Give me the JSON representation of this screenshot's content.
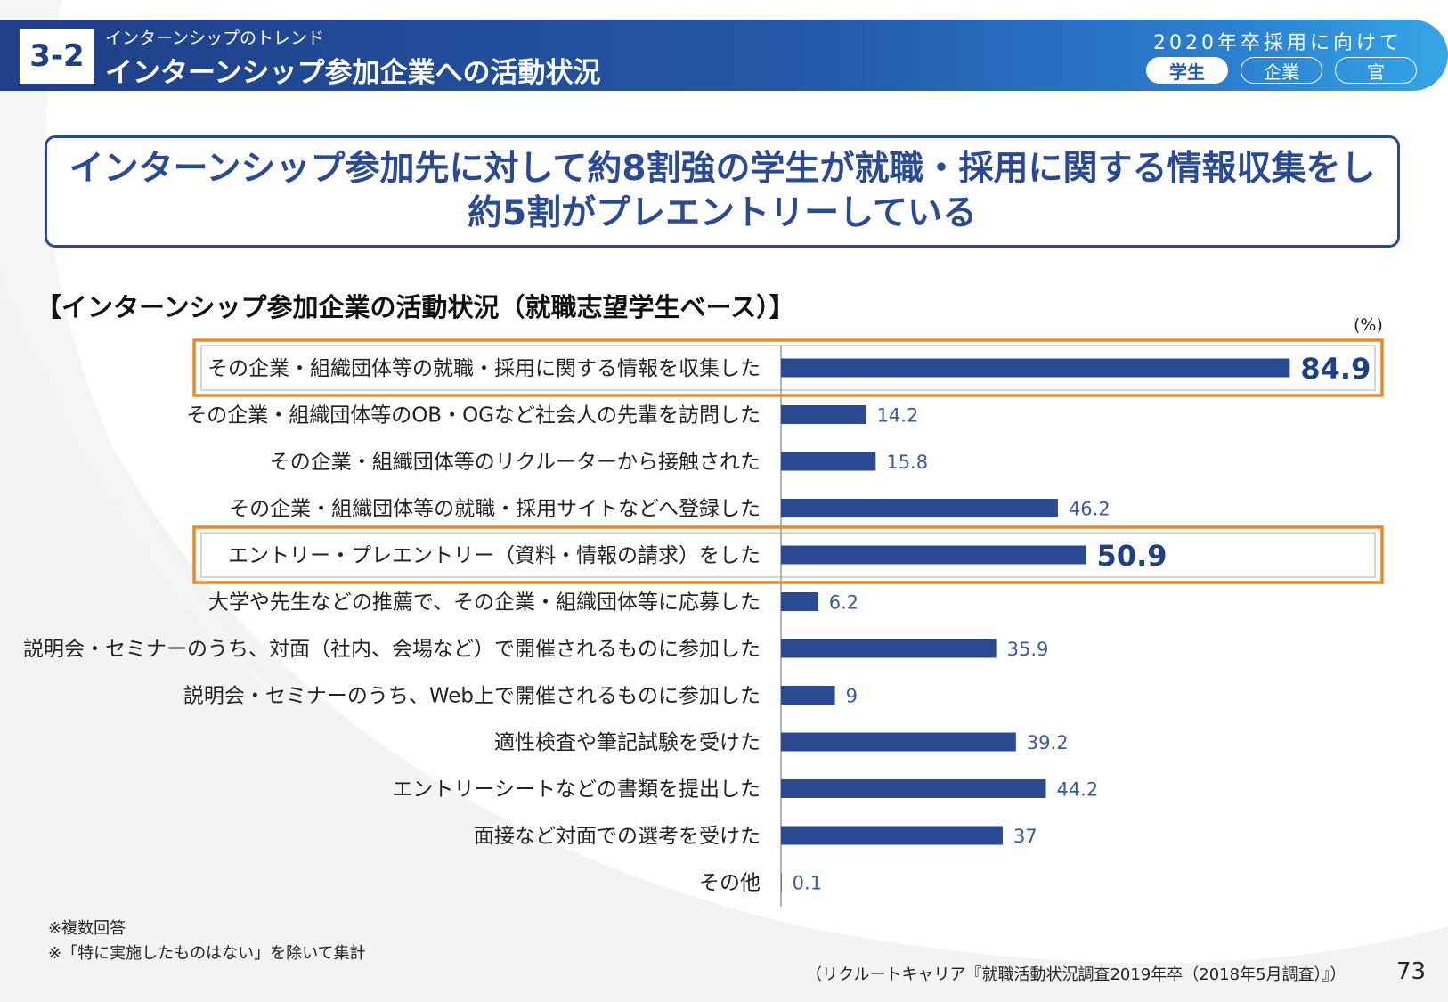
{
  "header": {
    "section_number": "3-2",
    "section_subtitle": "インターンシップのトレンド",
    "section_title": "インターンシップ参加企業への活動状況",
    "year_label": "2020年卒採用に向けて",
    "audience_tabs": [
      {
        "label": "学生",
        "active": true
      },
      {
        "label": "企業",
        "active": false
      },
      {
        "label": "官",
        "active": false
      }
    ]
  },
  "summary": {
    "line1": "インターンシップ参加先に対して約8割強の学生が就職・採用に関する情報収集をし",
    "line2": "約5割がプレエントリーしている"
  },
  "chart_data": {
    "type": "bar",
    "orientation": "horizontal",
    "title": "【インターンシップ参加企業の活動状況（就職志望学生ベース）】",
    "unit": "(%)",
    "xlim": [
      0,
      100
    ],
    "bar_color": "#2b4a94",
    "highlight_color": "#e8892b",
    "categories": [
      "その企業・組織団体等の就職・採用に関する情報を収集した",
      "その企業・組織団体等のOB・OGなど社会人の先輩を訪問した",
      "その企業・組織団体等のリクルーターから接触された",
      "その企業・組織団体等の就職・採用サイトなどへ登録した",
      "エントリー・プレエントリー（資料・情報の請求）をした",
      "大学や先生などの推薦で、その企業・組織団体等に応募した",
      "説明会・セミナーのうち、対面（社内、会場など）で開催されるものに参加した",
      "説明会・セミナーのうち、Web上で開催されるものに参加した",
      "適性検査や筆記試験を受けた",
      "エントリーシートなどの書類を提出した",
      "面接など対面での選考を受けた",
      "その他"
    ],
    "values": [
      84.9,
      14.2,
      15.8,
      46.2,
      50.9,
      6.2,
      35.9,
      9,
      39.2,
      44.2,
      37,
      0.1
    ],
    "value_labels": [
      "84.9",
      "14.2",
      "15.8",
      "46.2",
      "50.9",
      "6.2",
      "35.9",
      "9",
      "39.2",
      "44.2",
      "37",
      "0.1"
    ],
    "highlighted": [
      true,
      false,
      false,
      false,
      true,
      false,
      false,
      false,
      false,
      false,
      false,
      false
    ]
  },
  "notes": [
    "※複数回答",
    "※「特に実施したものはない」を除いて集計"
  ],
  "source": "（リクルートキャリア『就職活動状況調査2019年卒（2018年5月調査）』）",
  "page_number": "73"
}
